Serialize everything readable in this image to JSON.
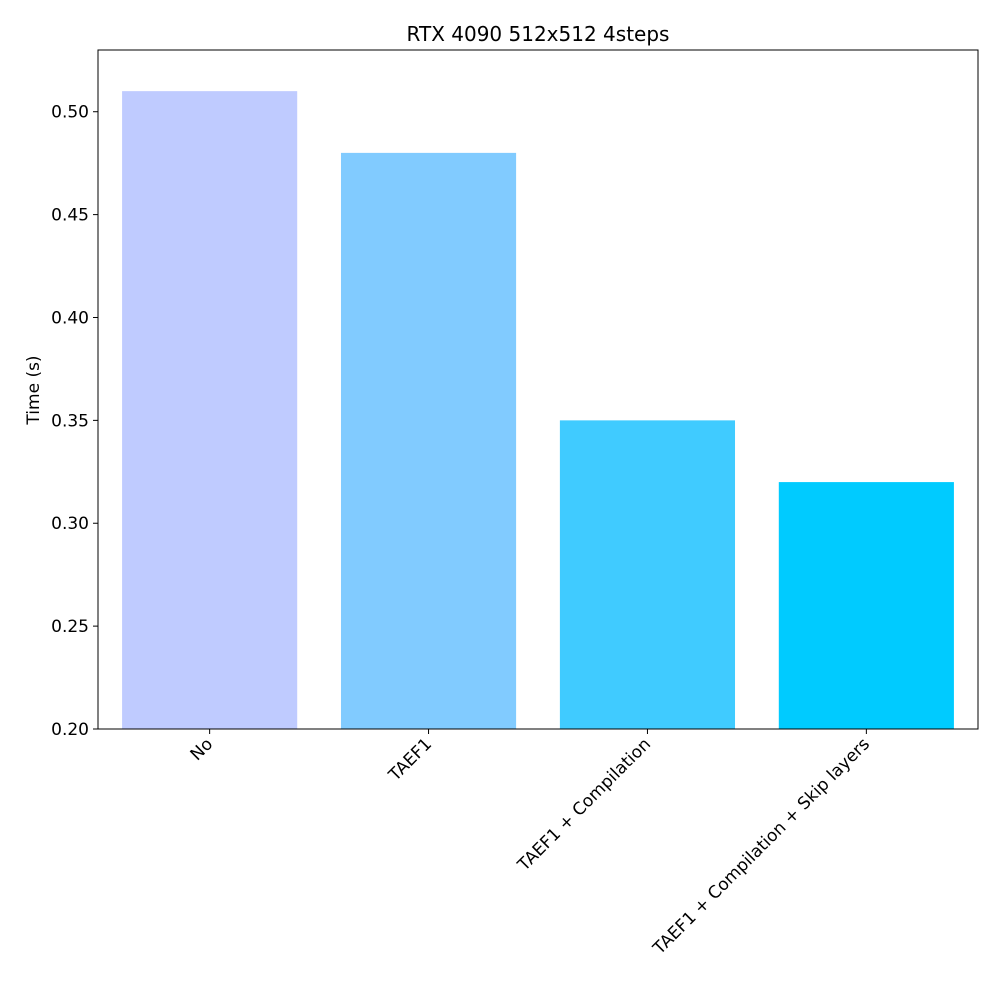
{
  "chart_data": {
    "type": "bar",
    "title": "RTX 4090 512x512 4steps",
    "xlabel": "",
    "ylabel": "Time (s)",
    "categories": [
      "No",
      "TAEF1",
      "TAEF1 + Compilation",
      "TAEF1 + Compilation + Skip layers"
    ],
    "values": [
      0.51,
      0.48,
      0.35,
      0.32
    ],
    "colors": [
      "#bfcbff",
      "#81cbff",
      "#40cbff",
      "#00cbff"
    ],
    "ylim": [
      0.2,
      0.53
    ],
    "yticks": [
      0.2,
      0.25,
      0.3,
      0.35,
      0.4,
      0.45,
      0.5
    ],
    "ytick_labels": [
      "0.20",
      "0.25",
      "0.30",
      "0.35",
      "0.40",
      "0.45",
      "0.50"
    ],
    "grid": false,
    "legend": "none"
  }
}
